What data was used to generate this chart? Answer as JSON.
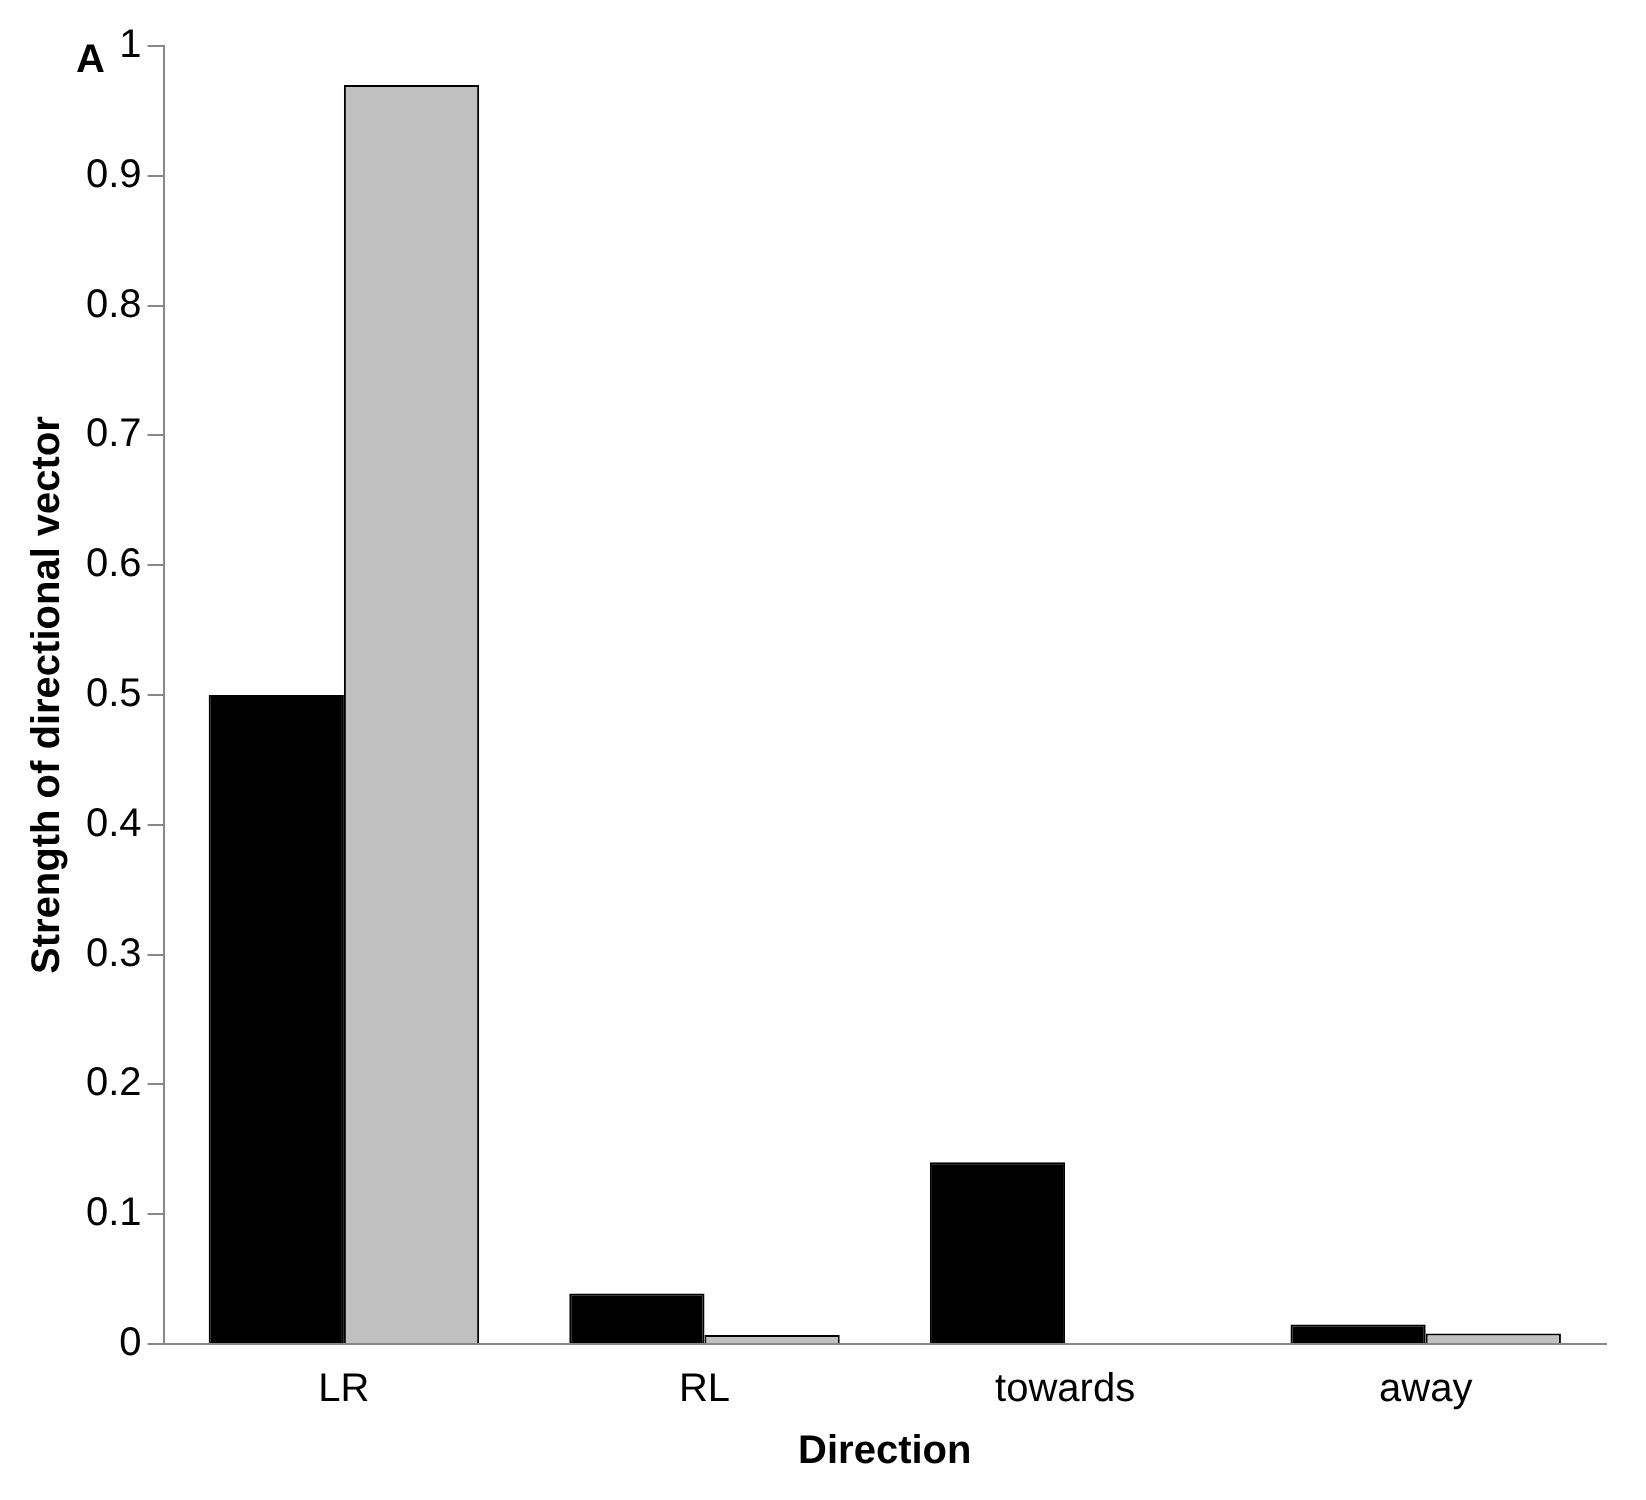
{
  "chart_data": {
    "type": "bar",
    "xlabel": "Direction",
    "ylabel": "Strength of directional vector",
    "annotations": [
      "A"
    ],
    "categories": [
      "LR",
      "RL",
      "towards",
      "away"
    ],
    "series": [
      {
        "color": "#000000",
        "values": [
          0.5,
          0.039,
          0.14,
          0.015
        ]
      },
      {
        "color": "#c0c0c0",
        "values": [
          0.97,
          0.007,
          0,
          0.008
        ]
      }
    ],
    "ylim": [
      0,
      1
    ],
    "yticks": [
      0,
      0.1,
      0.2,
      0.3,
      0.4,
      0.5,
      0.6,
      0.7,
      0.8,
      0.9,
      1
    ],
    "grid": false,
    "legend": false
  }
}
